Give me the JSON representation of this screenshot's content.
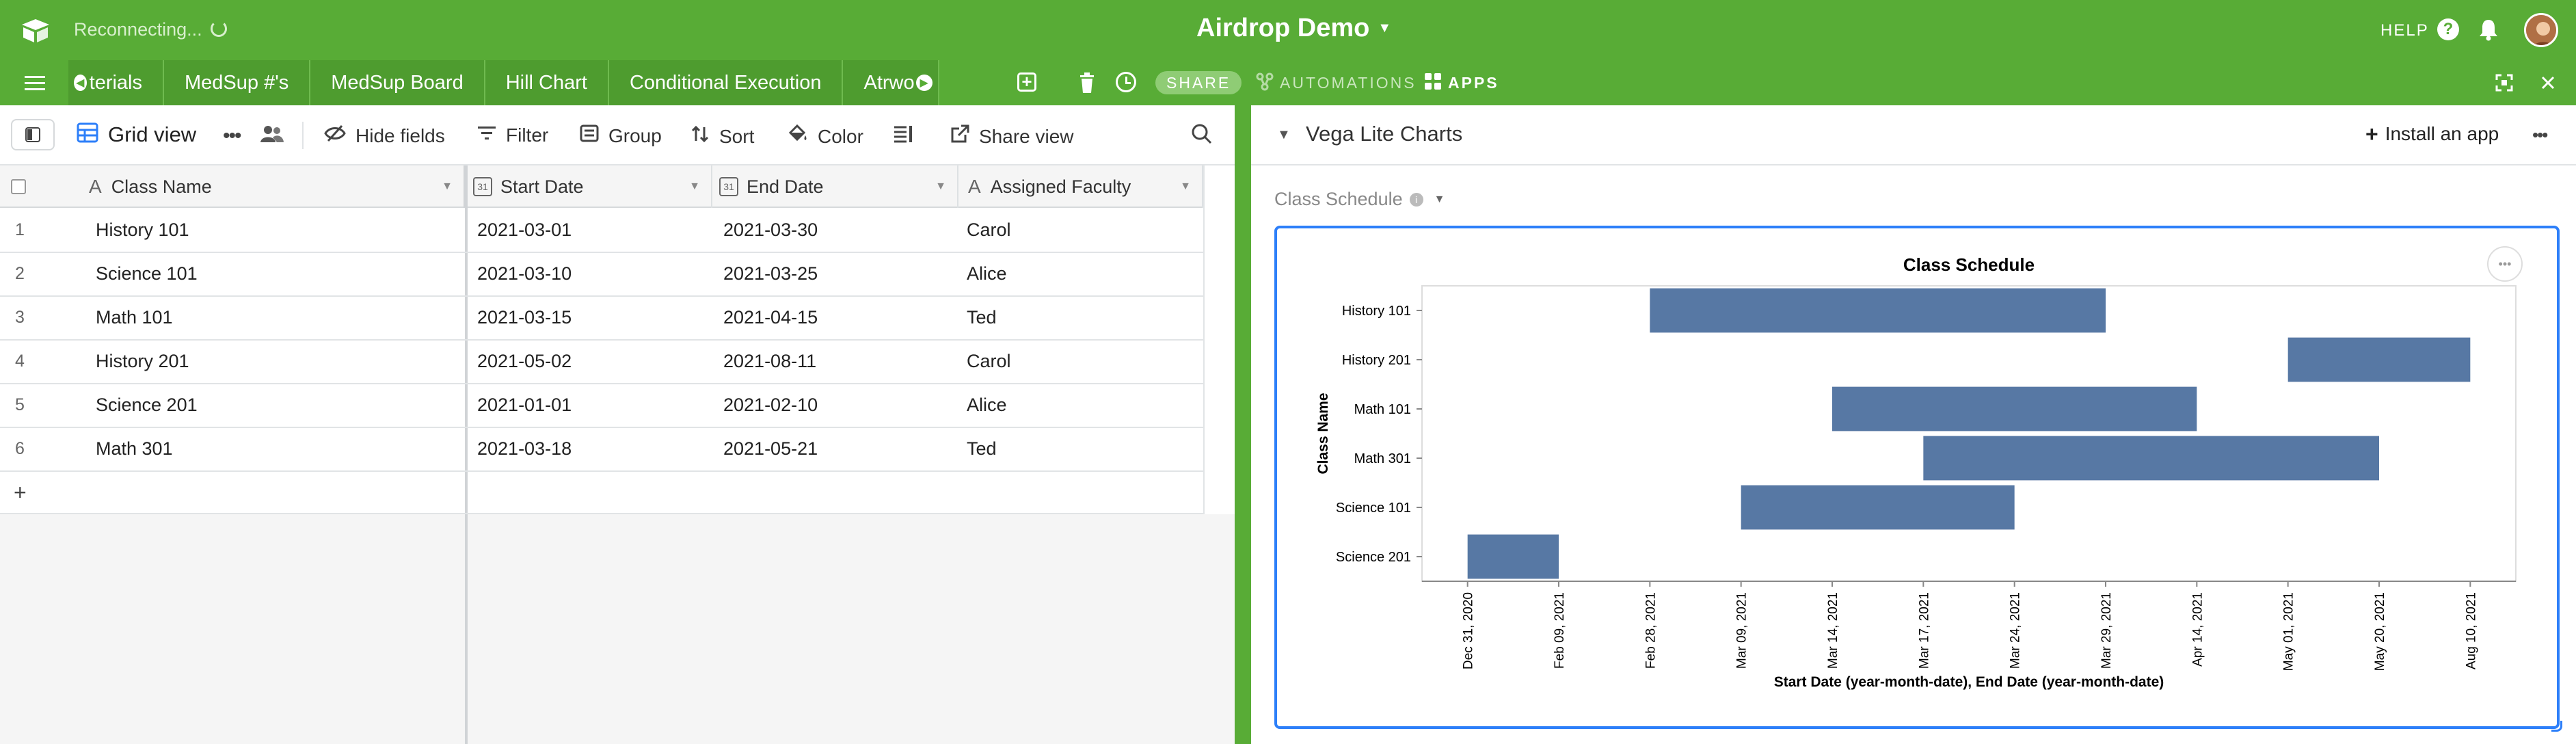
{
  "app": {
    "title": "Airdrop Demo",
    "status": "Reconnecting...",
    "help_label": "HELP",
    "brand_color": "#58ac36"
  },
  "tabs": {
    "items": [
      {
        "label": "terials"
      },
      {
        "label": "MedSup #'s"
      },
      {
        "label": "MedSup Board"
      },
      {
        "label": "Hill Chart"
      },
      {
        "label": "Conditional Execution"
      },
      {
        "label": "Atrwo"
      }
    ],
    "share_label": "SHARE",
    "automations_label": "AUTOMATIONS",
    "apps_label": "APPS"
  },
  "toolbar": {
    "view_name": "Grid view",
    "hide_fields": "Hide fields",
    "filter": "Filter",
    "group": "Group",
    "sort": "Sort",
    "color": "Color",
    "share_view": "Share view"
  },
  "grid": {
    "columns": [
      "Class Name",
      "Start Date",
      "End Date",
      "Assigned Faculty"
    ],
    "rows": [
      {
        "num": "1",
        "name": "History 101",
        "start": "2021-03-01",
        "end": "2021-03-30",
        "faculty": "Carol"
      },
      {
        "num": "2",
        "name": "Science 101",
        "start": "2021-03-10",
        "end": "2021-03-25",
        "faculty": "Alice"
      },
      {
        "num": "3",
        "name": "Math 101",
        "start": "2021-03-15",
        "end": "2021-04-15",
        "faculty": "Ted"
      },
      {
        "num": "4",
        "name": "History 201",
        "start": "2021-05-02",
        "end": "2021-08-11",
        "faculty": "Carol"
      },
      {
        "num": "5",
        "name": "Science 201",
        "start": "2021-01-01",
        "end": "2021-02-10",
        "faculty": "Alice"
      },
      {
        "num": "6",
        "name": "Math 301",
        "start": "2021-03-18",
        "end": "2021-05-21",
        "faculty": "Ted"
      }
    ],
    "add_row": "+"
  },
  "panel": {
    "title": "Vega Lite Charts",
    "install_label": "Install an app",
    "selector_label": "Class Schedule"
  },
  "chart_data": {
    "type": "bar",
    "orientation": "horizontal-range",
    "title": "Class Schedule",
    "ylabel": "Class Name",
    "xlabel": "Start Date (year-month-date), End Date (year-month-date)",
    "categories": [
      "History 101",
      "History 201",
      "Math 101",
      "Math 301",
      "Science 101",
      "Science 201"
    ],
    "x_ticks": [
      "Dec 31, 2020",
      "Feb 09, 2021",
      "Feb 28, 2021",
      "Mar 09, 2021",
      "Mar 14, 2021",
      "Mar 17, 2021",
      "Mar 24, 2021",
      "Mar 29, 2021",
      "Apr 14, 2021",
      "May 01, 2021",
      "May 20, 2021",
      "Aug 10, 2021"
    ],
    "bars": [
      {
        "category": "History 101",
        "start": "Feb 28, 2021",
        "end": "Mar 29, 2021"
      },
      {
        "category": "History 201",
        "start": "May 01, 2021",
        "end": "Aug 10, 2021"
      },
      {
        "category": "Math 101",
        "start": "Mar 14, 2021",
        "end": "Apr 14, 2021"
      },
      {
        "category": "Math 301",
        "start": "Mar 17, 2021",
        "end": "May 20, 2021"
      },
      {
        "category": "Science 101",
        "start": "Mar 09, 2021",
        "end": "Mar 24, 2021"
      },
      {
        "category": "Science 201",
        "start": "Dec 31, 2020",
        "end": "Feb 09, 2021"
      }
    ],
    "bar_color": "#5778a4",
    "grid": false
  }
}
